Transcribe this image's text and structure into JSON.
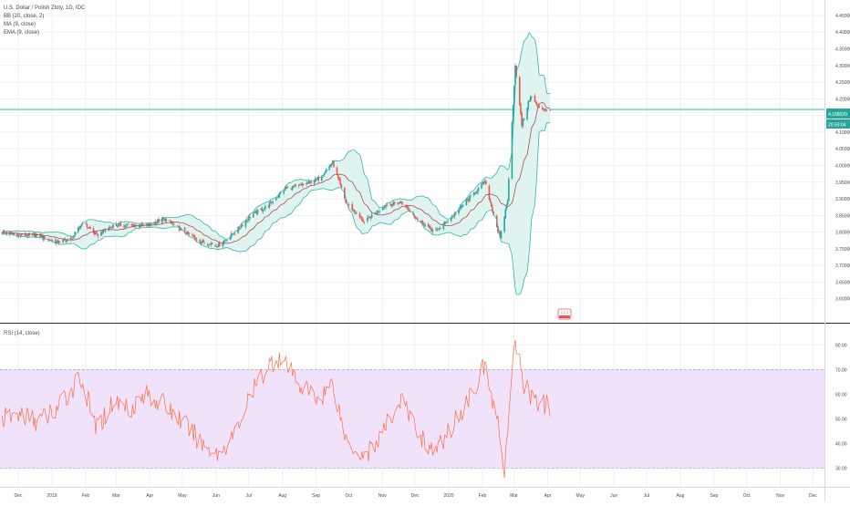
{
  "legend": {
    "symbol": "U.S. Dollar / Polish Zloty, 1D, IDC",
    "bb": "BB (20, close, 2)",
    "ma": "MA (9, close)",
    "ema": "EMA (9, close)",
    "rsi": "RSI (14, close)"
  },
  "price_badge": {
    "price": "4.168020",
    "countdown": "20:59:04"
  },
  "colors": {
    "up": "#26a69a",
    "down": "#ef5350",
    "bb": "#3bb3a8",
    "bb_fill": "#dcf3f0",
    "ma": "#b04a4a",
    "rsi": "#ff6e40",
    "rsi_band": "#f1e2fc",
    "grid": "#eef0f3"
  },
  "chart_data": [
    {
      "type": "candlestick",
      "title": "U.S. Dollar / Polish Zloty, 1D, IDC",
      "ylim": [
        3.55,
        4.48
      ],
      "y_ticks": [
        "4.450000",
        "4.400000",
        "4.350000",
        "4.300000",
        "4.250000",
        "4.200000",
        "4.150000",
        "4.100000",
        "4.050000",
        "4.000000",
        "3.950000",
        "3.900000",
        "3.850000",
        "3.800000",
        "3.750000",
        "3.700000",
        "3.650000",
        "3.600000"
      ],
      "x_ticks": [
        "Dec",
        "2019",
        "Feb",
        "Mar",
        "Apr",
        "May",
        "Jun",
        "Jul",
        "Aug",
        "Sep",
        "Oct",
        "Nov",
        "Dec",
        "2020",
        "Feb",
        "Mar",
        "Apr",
        "May",
        "Jun",
        "Jul",
        "Aug",
        "Sep",
        "Oct",
        "Nov",
        "Dec"
      ],
      "last_price": 4.16802,
      "indicators": [
        "BB (20, close, 2)",
        "MA (9, close)",
        "EMA (9, close)"
      ],
      "close_path": [
        [
          "2018-12-03",
          3.8
        ],
        [
          "2018-12-20",
          3.79
        ],
        [
          "2019-01-05",
          3.79
        ],
        [
          "2019-01-22",
          3.77
        ],
        [
          "2019-02-05",
          3.78
        ],
        [
          "2019-02-15",
          3.83
        ],
        [
          "2019-02-28",
          3.79
        ],
        [
          "2019-03-15",
          3.82
        ],
        [
          "2019-04-01",
          3.82
        ],
        [
          "2019-04-15",
          3.82
        ],
        [
          "2019-05-01",
          3.84
        ],
        [
          "2019-05-20",
          3.8
        ],
        [
          "2019-06-05",
          3.77
        ],
        [
          "2019-06-20",
          3.76
        ],
        [
          "2019-07-05",
          3.8
        ],
        [
          "2019-07-20",
          3.85
        ],
        [
          "2019-08-05",
          3.88
        ],
        [
          "2019-08-20",
          3.93
        ],
        [
          "2019-09-05",
          3.94
        ],
        [
          "2019-09-20",
          3.96
        ],
        [
          "2019-10-03",
          4.01
        ],
        [
          "2019-10-15",
          3.89
        ],
        [
          "2019-11-01",
          3.83
        ],
        [
          "2019-11-20",
          3.88
        ],
        [
          "2019-12-05",
          3.89
        ],
        [
          "2019-12-20",
          3.84
        ],
        [
          "2020-01-05",
          3.8
        ],
        [
          "2020-01-22",
          3.85
        ],
        [
          "2020-02-05",
          3.9
        ],
        [
          "2020-02-20",
          3.95
        ],
        [
          "2020-03-05",
          3.78
        ],
        [
          "2020-03-12",
          3.9
        ],
        [
          "2020-03-19",
          4.3
        ],
        [
          "2020-03-25",
          4.12
        ],
        [
          "2020-04-02",
          4.21
        ],
        [
          "2020-04-10",
          4.17
        ],
        [
          "2020-04-20",
          4.168
        ]
      ]
    },
    {
      "type": "line",
      "title": "RSI (14, close)",
      "ylim": [
        24,
        86
      ],
      "y_ticks": [
        "80.00",
        "70.00",
        "60.00",
        "50.00",
        "40.00",
        "30.00"
      ],
      "band": [
        30,
        70
      ],
      "path": [
        [
          "2018-12-03",
          50
        ],
        [
          "2018-12-20",
          52
        ],
        [
          "2019-01-05",
          49
        ],
        [
          "2019-01-22",
          54
        ],
        [
          "2019-02-05",
          62
        ],
        [
          "2019-02-12",
          68
        ],
        [
          "2019-02-28",
          46
        ],
        [
          "2019-03-15",
          57
        ],
        [
          "2019-04-01",
          55
        ],
        [
          "2019-04-15",
          60
        ],
        [
          "2019-05-01",
          56
        ],
        [
          "2019-05-20",
          48
        ],
        [
          "2019-06-05",
          40
        ],
        [
          "2019-06-20",
          36
        ],
        [
          "2019-07-05",
          44
        ],
        [
          "2019-07-20",
          60
        ],
        [
          "2019-08-05",
          72
        ],
        [
          "2019-08-15",
          75
        ],
        [
          "2019-09-05",
          63
        ],
        [
          "2019-09-20",
          58
        ],
        [
          "2019-10-03",
          65
        ],
        [
          "2019-10-15",
          42
        ],
        [
          "2019-11-01",
          35
        ],
        [
          "2019-11-15",
          42
        ],
        [
          "2019-12-05",
          58
        ],
        [
          "2019-12-20",
          45
        ],
        [
          "2020-01-05",
          36
        ],
        [
          "2020-01-22",
          48
        ],
        [
          "2020-02-05",
          58
        ],
        [
          "2020-02-20",
          72
        ],
        [
          "2020-03-05",
          43
        ],
        [
          "2020-03-09",
          30
        ],
        [
          "2020-03-19",
          82
        ],
        [
          "2020-03-27",
          64
        ],
        [
          "2020-04-05",
          58
        ],
        [
          "2020-04-12",
          56
        ],
        [
          "2020-04-20",
          55
        ]
      ]
    }
  ]
}
